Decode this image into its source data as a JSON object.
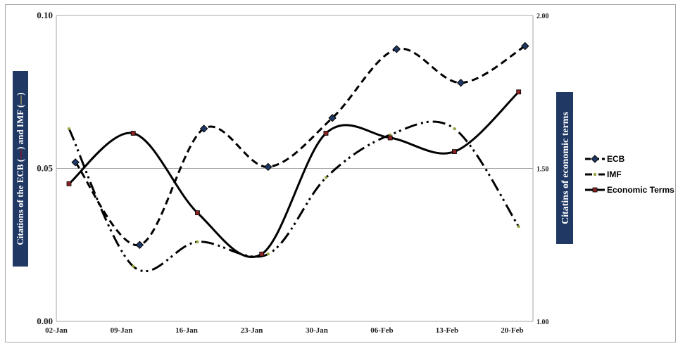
{
  "chart_data": {
    "type": "line",
    "categories": [
      "02-Jan",
      "09-Jan",
      "16-Jan",
      "23-Jan",
      "30-Jan",
      "06-Feb",
      "13-Feb",
      "20-Feb"
    ],
    "left_axis": {
      "label_prefix": "Citations of the ECB (",
      "label_middle": ") and IMF (",
      "label_suffix": ")",
      "ylim": [
        0,
        0.1
      ],
      "ticks": [
        "0.00",
        "0.05",
        "0.10"
      ]
    },
    "right_axis": {
      "label": "Citatins of economic terms",
      "ylim": [
        1,
        2
      ],
      "ticks": [
        "1.00",
        "1.50",
        "2.00"
      ]
    },
    "grid": "horizontal",
    "legend_position": "right",
    "series": [
      {
        "name": "ECB",
        "axis": "left",
        "style": "dashed",
        "marker": "diamond",
        "marker_color": "#1f3864",
        "points": [
          [
            0.1,
            0.052
          ],
          [
            1.1,
            0.025
          ],
          [
            2.1,
            0.063
          ],
          [
            3.1,
            0.0505
          ],
          [
            4.1,
            0.0665
          ],
          [
            5.1,
            0.089
          ],
          [
            6.1,
            0.078
          ],
          [
            7.1,
            0.09
          ]
        ]
      },
      {
        "name": "IMF",
        "axis": "left",
        "style": "dash-dot-dot",
        "marker": "dot",
        "marker_color": "#9aa53a",
        "points": [
          [
            0.0,
            0.063
          ],
          [
            1.0,
            0.018
          ],
          [
            2.0,
            0.026
          ],
          [
            3.1,
            0.022
          ],
          [
            4.0,
            0.047
          ],
          [
            5.0,
            0.061
          ],
          [
            6.0,
            0.063
          ],
          [
            7.0,
            0.031
          ]
        ]
      },
      {
        "name": "Economic Terms",
        "axis": "right",
        "style": "solid",
        "marker": "square",
        "marker_color": "#8b2323",
        "points": [
          [
            0.0,
            1.45
          ],
          [
            1.0,
            1.615
          ],
          [
            2.0,
            1.355
          ],
          [
            3.0,
            1.22
          ],
          [
            4.0,
            1.615
          ],
          [
            5.0,
            1.6
          ],
          [
            6.0,
            1.555
          ],
          [
            7.0,
            1.75
          ]
        ]
      }
    ]
  }
}
